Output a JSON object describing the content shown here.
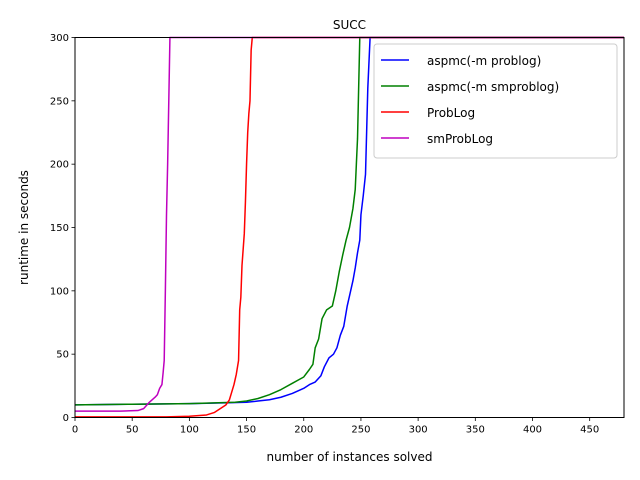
{
  "chart_data": {
    "type": "line",
    "title": "SUCC",
    "xlabel": "number of instances solved",
    "ylabel": "runtime in seconds",
    "xlim": [
      0,
      480
    ],
    "ylim": [
      0,
      300
    ],
    "xticks": [
      0,
      50,
      100,
      150,
      200,
      250,
      300,
      350,
      400,
      450
    ],
    "yticks": [
      0,
      50,
      100,
      150,
      200,
      250,
      300
    ],
    "grid": false,
    "legend_position": "top-right",
    "series": [
      {
        "name": "aspmc(-m problog)",
        "color": "#0000ff",
        "points": [
          [
            0,
            10
          ],
          [
            50,
            10.5
          ],
          [
            100,
            11
          ],
          [
            130,
            11.5
          ],
          [
            150,
            12
          ],
          [
            160,
            13
          ],
          [
            170,
            14
          ],
          [
            180,
            16
          ],
          [
            190,
            19
          ],
          [
            200,
            23
          ],
          [
            205,
            26
          ],
          [
            210,
            28
          ],
          [
            215,
            33
          ],
          [
            218,
            40
          ],
          [
            222,
            47
          ],
          [
            226,
            50
          ],
          [
            229,
            55
          ],
          [
            232,
            65
          ],
          [
            235,
            72
          ],
          [
            238,
            88
          ],
          [
            240,
            96
          ],
          [
            243,
            108
          ],
          [
            245,
            118
          ],
          [
            247,
            130
          ],
          [
            249,
            140
          ],
          [
            250,
            160
          ],
          [
            252,
            175
          ],
          [
            254,
            192
          ],
          [
            256,
            260
          ],
          [
            258,
            300
          ],
          [
            480,
            300
          ]
        ]
      },
      {
        "name": "aspmc(-m smproblog)",
        "color": "#008000",
        "points": [
          [
            0,
            10
          ],
          [
            50,
            10.5
          ],
          [
            100,
            11
          ],
          [
            140,
            12
          ],
          [
            150,
            13
          ],
          [
            160,
            15
          ],
          [
            170,
            18
          ],
          [
            180,
            22
          ],
          [
            190,
            27
          ],
          [
            200,
            32
          ],
          [
            205,
            38
          ],
          [
            208,
            42
          ],
          [
            210,
            55
          ],
          [
            213,
            62
          ],
          [
            216,
            78
          ],
          [
            220,
            85
          ],
          [
            225,
            88
          ],
          [
            228,
            100
          ],
          [
            231,
            115
          ],
          [
            234,
            128
          ],
          [
            237,
            140
          ],
          [
            240,
            150
          ],
          [
            243,
            165
          ],
          [
            245,
            180
          ],
          [
            246,
            200
          ],
          [
            247,
            220
          ],
          [
            248,
            260
          ],
          [
            249,
            300
          ],
          [
            480,
            300
          ]
        ]
      },
      {
        "name": "ProbLog",
        "color": "#ff0000",
        "points": [
          [
            0,
            0.5
          ],
          [
            80,
            0.5
          ],
          [
            100,
            1
          ],
          [
            115,
            2
          ],
          [
            122,
            4
          ],
          [
            127,
            7
          ],
          [
            132,
            10
          ],
          [
            135,
            14
          ],
          [
            137,
            20
          ],
          [
            139,
            26
          ],
          [
            141,
            34
          ],
          [
            143,
            45
          ],
          [
            144,
            85
          ],
          [
            145,
            95
          ],
          [
            146,
            120
          ],
          [
            148,
            145
          ],
          [
            149,
            170
          ],
          [
            150,
            200
          ],
          [
            151,
            225
          ],
          [
            152,
            240
          ],
          [
            153,
            250
          ],
          [
            154,
            290
          ],
          [
            155,
            300
          ],
          [
            480,
            300
          ]
        ]
      },
      {
        "name": "smProbLog",
        "color": "#bf00bf",
        "points": [
          [
            0,
            5
          ],
          [
            40,
            5
          ],
          [
            55,
            5.5
          ],
          [
            60,
            7
          ],
          [
            65,
            12
          ],
          [
            70,
            16
          ],
          [
            72,
            18
          ],
          [
            74,
            23
          ],
          [
            76,
            26
          ],
          [
            77,
            35
          ],
          [
            78,
            45
          ],
          [
            79,
            100
          ],
          [
            80,
            160
          ],
          [
            81,
            200
          ],
          [
            82,
            250
          ],
          [
            83,
            300
          ],
          [
            480,
            300
          ]
        ]
      }
    ]
  }
}
